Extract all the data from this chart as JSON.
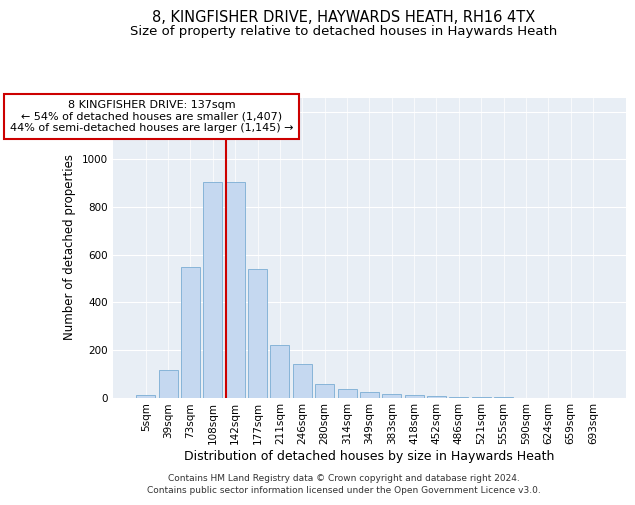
{
  "title_line1": "8, KINGFISHER DRIVE, HAYWARDS HEATH, RH16 4TX",
  "title_line2": "Size of property relative to detached houses in Haywards Heath",
  "xlabel": "Distribution of detached houses by size in Haywards Heath",
  "ylabel": "Number of detached properties",
  "bin_labels": [
    "5sqm",
    "39sqm",
    "73sqm",
    "108sqm",
    "142sqm",
    "177sqm",
    "211sqm",
    "246sqm",
    "280sqm",
    "314sqm",
    "349sqm",
    "383sqm",
    "418sqm",
    "452sqm",
    "486sqm",
    "521sqm",
    "555sqm",
    "590sqm",
    "624sqm",
    "659sqm",
    "693sqm"
  ],
  "bar_values": [
    10,
    115,
    550,
    905,
    905,
    540,
    220,
    140,
    55,
    35,
    25,
    15,
    10,
    5,
    2,
    1,
    1,
    0,
    0,
    0,
    0
  ],
  "bar_color": "#c5d8f0",
  "bar_edge_color": "#7aadd4",
  "vline_color": "#cc0000",
  "annotation_text": "8 KINGFISHER DRIVE: 137sqm\n← 54% of detached houses are smaller (1,407)\n44% of semi-detached houses are larger (1,145) →",
  "annotation_box_facecolor": "#ffffff",
  "annotation_box_edgecolor": "#cc0000",
  "ylim": [
    0,
    1260
  ],
  "yticks": [
    0,
    200,
    400,
    600,
    800,
    1000,
    1200
  ],
  "plot_bg_color": "#e8eef5",
  "fig_bg_color": "#ffffff",
  "footer_text": "Contains HM Land Registry data © Crown copyright and database right 2024.\nContains public sector information licensed under the Open Government Licence v3.0.",
  "title_fontsize": 10.5,
  "subtitle_fontsize": 9.5,
  "xlabel_fontsize": 9,
  "ylabel_fontsize": 8.5,
  "tick_fontsize": 7.5,
  "annotation_fontsize": 8,
  "footer_fontsize": 6.5
}
